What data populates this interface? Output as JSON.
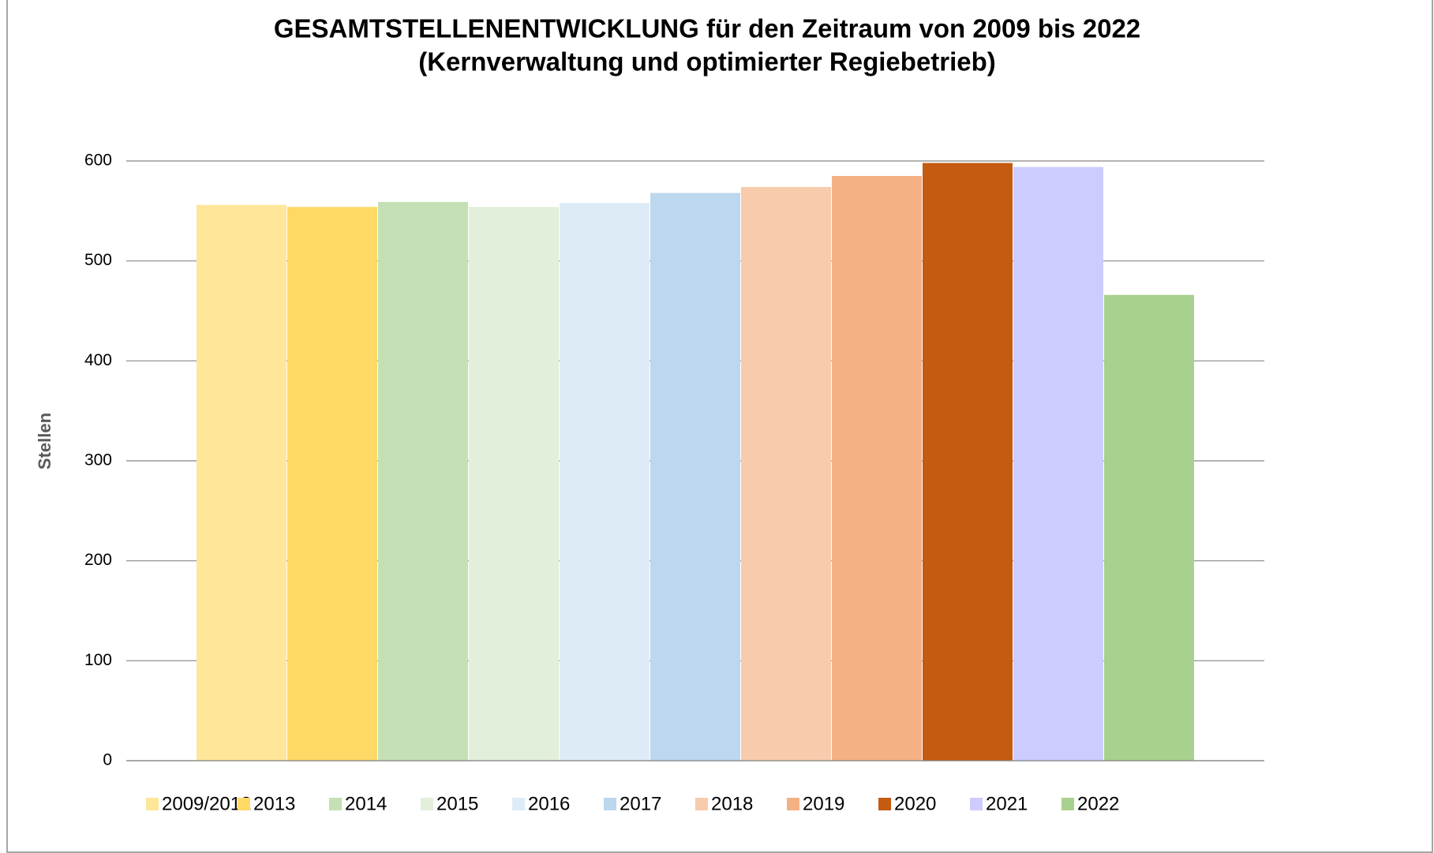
{
  "chart_data": {
    "type": "bar",
    "title": "GESAMTSTELLENENTWICKLUNG für den Zeitraum von 2009 bis 2022",
    "subtitle": "(Kernverwaltung und optimierter Regiebetrieb)",
    "y_label": "Stellen",
    "ylim": [
      0,
      600
    ],
    "yticks": [
      0,
      100,
      200,
      300,
      400,
      500,
      600
    ],
    "grid": true,
    "legend": "bottom",
    "series": [
      {
        "name": "2009/2012",
        "color": "#FFE699",
        "values": [
          556
        ]
      },
      {
        "name": "2013",
        "color": "#FFD966",
        "values": [
          554
        ]
      },
      {
        "name": "2014",
        "color": "#C5E0B4",
        "values": [
          559
        ]
      },
      {
        "name": "2015",
        "color": "#E2EFDA",
        "values": [
          554
        ]
      },
      {
        "name": "2016",
        "color": "#DDEBF7",
        "values": [
          558
        ]
      },
      {
        "name": "2017",
        "color": "#BDD7EE",
        "values": [
          568
        ]
      },
      {
        "name": "2018",
        "color": "#F8CBAD",
        "values": [
          574
        ]
      },
      {
        "name": "2019",
        "color": "#F4B183",
        "values": [
          585
        ]
      },
      {
        "name": "2020",
        "color": "#C55A11",
        "values": [
          598
        ]
      },
      {
        "name": "2021",
        "color": "#CCCCFF",
        "values": [
          594
        ]
      },
      {
        "name": "2022",
        "color": "#A9D18E",
        "values": [
          466
        ]
      }
    ]
  }
}
